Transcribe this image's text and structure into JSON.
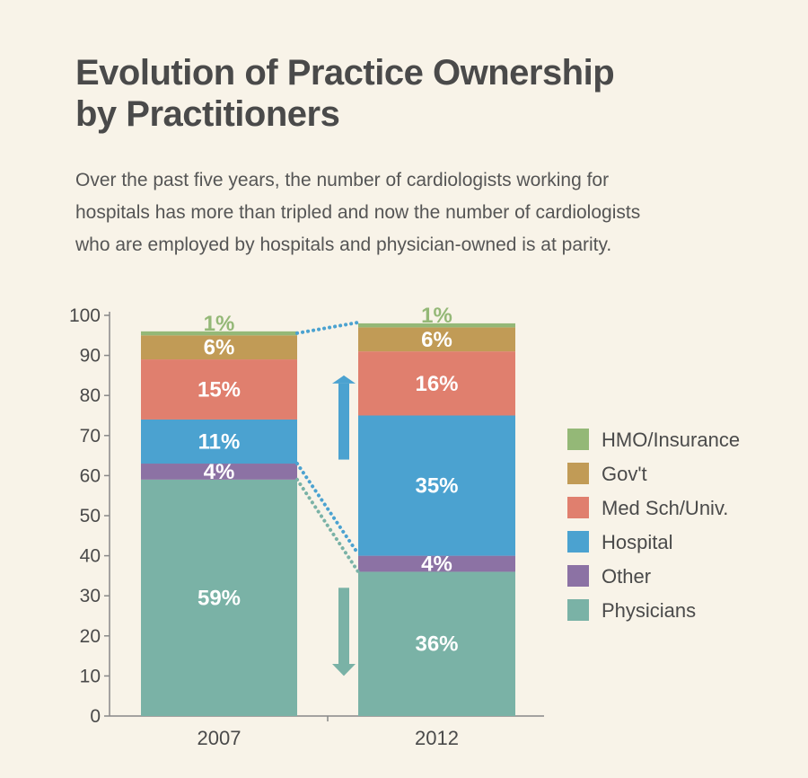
{
  "chart_data": {
    "type": "bar",
    "stacked": true,
    "title_lines": [
      "Evolution of Practice Ownership",
      "by Practitioners"
    ],
    "subtitle_lines": [
      "Over the past five years, the number of cardiologists working for",
      "hospitals has more than tripled and now the number of cardiologists",
      "who are employed by hospitals and physician-owned is at parity."
    ],
    "categories": [
      "2007",
      "2012"
    ],
    "ylim": [
      0,
      100
    ],
    "yticks": [
      "0",
      "10",
      "20",
      "30",
      "40",
      "50",
      "60",
      "70",
      "80",
      "90",
      "100"
    ],
    "legend_position": "right",
    "series": [
      {
        "name": "Physicians",
        "values": [
          59,
          36
        ],
        "labels": [
          "59%",
          "36%"
        ],
        "color": "#7ab2a6",
        "label_color": "#ffffff"
      },
      {
        "name": "Other",
        "values": [
          4,
          4
        ],
        "labels": [
          "4%",
          "4%"
        ],
        "color": "#8c72a4",
        "label_color": "#ffffff"
      },
      {
        "name": "Hospital",
        "values": [
          11,
          35
        ],
        "labels": [
          "11%",
          "35%"
        ],
        "color": "#4ba2d0",
        "label_color": "#ffffff"
      },
      {
        "name": "Med Sch/Univ.",
        "values": [
          15,
          16
        ],
        "labels": [
          "15%",
          "16%"
        ],
        "color": "#e07f6e",
        "label_color": "#ffffff"
      },
      {
        "name": "Gov't",
        "values": [
          6,
          6
        ],
        "labels": [
          "6%",
          "6%"
        ],
        "color": "#c19b56",
        "label_color": "#ffffff"
      },
      {
        "name": "HMO/Insurance",
        "values": [
          1,
          1
        ],
        "labels": [
          "1%",
          "1%"
        ],
        "color": "#94b877",
        "label_color": "#94b877"
      }
    ],
    "legend_order": [
      "HMO/Insurance",
      "Gov't",
      "Med Sch/Univ.",
      "Hospital",
      "Other",
      "Physicians"
    ],
    "axis_color": "#888888",
    "text_color": "#4a4a4a",
    "arrow_color_up": "#4ba2d0",
    "arrow_color_down": "#7ab2a6"
  }
}
